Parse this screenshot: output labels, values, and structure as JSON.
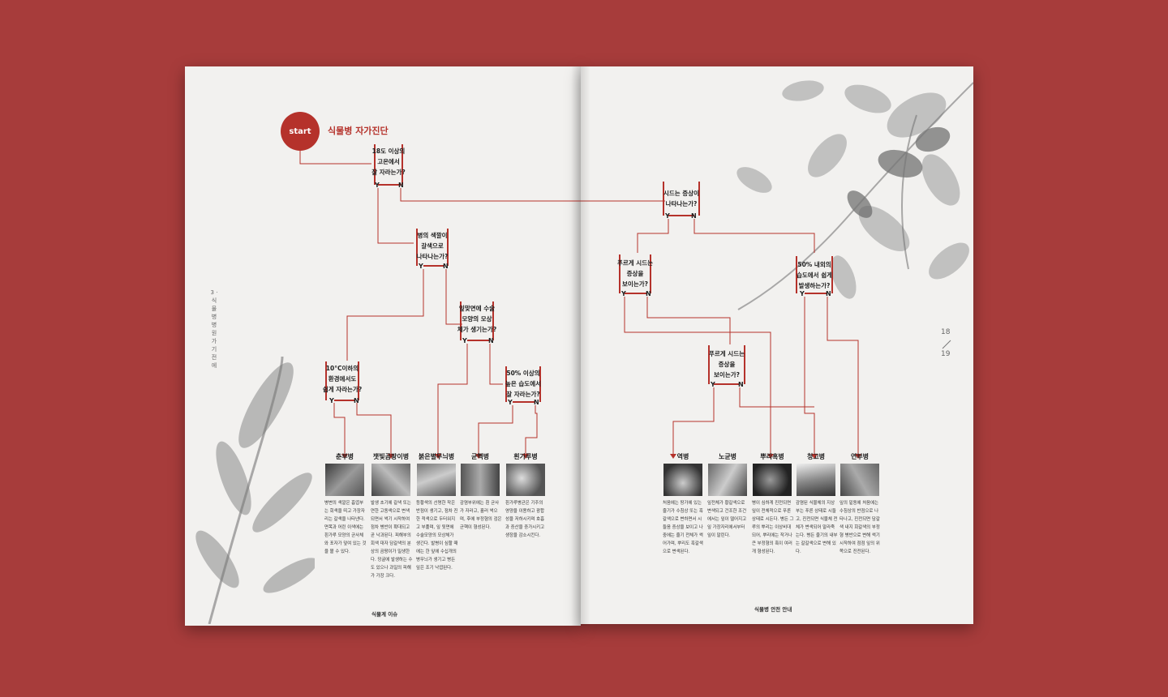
{
  "header": {
    "start_label": "start",
    "title": "식물병 자가진단"
  },
  "side_label": "3 · 식물병 병원 가기 전에",
  "yes": "Y",
  "no": "N",
  "questions": {
    "q1": "18도 이상의\n고온에서\n잘 자라는가?",
    "q2": "병의 색깔이\n갈색으로\n나타나는가?",
    "q3": "잎맞면에 수술\n모양의 모상\n체가 생기는가?",
    "q4": "10°C이하의\n환경에서도\n쉽게 자라는가?",
    "q5": "50% 이상의\n높은 습도에서\n잘 자라는가?",
    "q6": "시드는 증상이\n나타나는가?",
    "q7": "푸르게 시드는\n증상을\n보이는가?",
    "q8": "50% 내외의\n습도에서 쉽게\n발생하는가?",
    "q9": "푸르게 시드는\n증상을\n보이는가?"
  },
  "diseases_left": [
    {
      "name": "춘부병",
      "desc": "병변의 색깔은 흡엽부는 회색을 띠고 가장자리는 갈색을 나타낸다. 면목과 어린 이색에는 흰가루 모양의 균사체와 포자가 덮여 있는 것을 볼 수 있다."
    },
    {
      "name": "잿빛곰팡이병",
      "desc": "발생 초기에 갈색 또는 연한 고동색으로 변색되면서 썩기 시작하여 점차 병반이 확대되고 곧 낙과된다. 피해부의 회색 대자 담갈색의 분상의 곰팡이가 밀생한다. 덩굴에 발생하는 수도 있으나 과일의 피해가 가장 크다."
    },
    {
      "name": "붉은별무늬병",
      "desc": "등황색의 선명한 작은 반점이 생기고, 점차 진한 적색으로 두터워지고 부풀며, 잎 뒷면에 수술모양의 모상체가 생긴다. 발병이 심할 때에는 한 잎에 수십개의 병무늬가 생기고 병든 잎은 조기 낙엽된다."
    },
    {
      "name": "균핵병",
      "desc": "감염부위에는 흰 균사가 자라고, 흘러 썩으며, 후에 부정형의 검은 균핵이 형성된다."
    },
    {
      "name": "흰가루병",
      "desc": "흰가루병균은 기주의 영양을 이용하고 광합성을 저하시키며 호흡과 증산을 증가시키고 생장을 감소시킨다."
    }
  ],
  "diseases_right": [
    {
      "name": "역병",
      "desc": "처음에는 땅가에 있는 줄기가 수침상 또는 흑갈색으로 변하면서 시들음 증상을 보이고 나중에는 줄기 전체가 썩어가며, 뿌리도 흑갈색으로 변색된다."
    },
    {
      "name": "노균병",
      "desc": "잎전체가 황갈색으로 변색되고 건조한 조건에서는 잎이 떨어지고 잎 가장자리에서부터 잎이 말린다."
    },
    {
      "name": "뿌리혹병",
      "desc": "병이 심하게 진전되면 잎이 전체적으로 푸른 상태로 시든다. 병든 그루의 뿌리는 이상비대 되어, 뿌리에는 작거나 큰 부정형의 혹이 여러 개 형성된다."
    },
    {
      "name": "청고병",
      "desc": "감염된 식물체의 지상부는 푸른 상태로 시들고, 진전되면 식물체 전체가 변색되어 말라죽는다. 병든 줄기의 내부는 갈갈색으로 변해 있다."
    },
    {
      "name": "연부병",
      "desc": "잎의 밑동에 처음에는 수침상의 반점으로 나타나고, 진전되면 담갈색 내지 회갈색의 부정형 병반으로 변해 썩기 시작하여 점점 잎의 위쪽으로 진전된다."
    }
  ],
  "footer_left": "식물계 이슈",
  "footer_right": "식물병 안전 안내",
  "page_numbers": {
    "left": "18",
    "right": "19"
  },
  "accent_color": "#b5322b",
  "background_color": "#a73c3b"
}
